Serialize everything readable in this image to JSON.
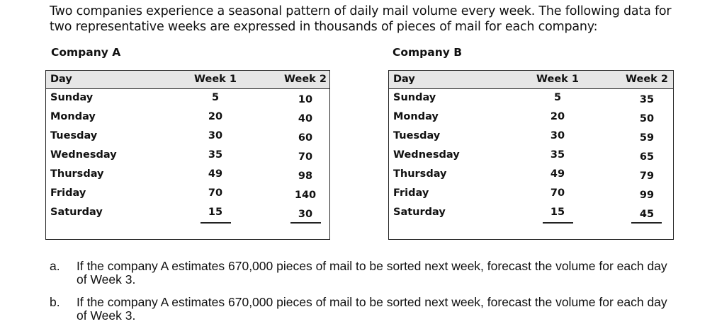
{
  "intro": "Two companies experience a seasonal pattern of daily mail volume every week. The following data for two representative weeks are expressed in thousands of pieces of mail for each company:",
  "tables": [
    {
      "company": "Company A",
      "headers": [
        "Day",
        "Week 1",
        "Week 2"
      ],
      "rows": [
        [
          "Sunday",
          "5",
          "10"
        ],
        [
          "Monday",
          "20",
          "40"
        ],
        [
          "Tuesday",
          "30",
          "60"
        ],
        [
          "Wednesday",
          "35",
          "70"
        ],
        [
          "Thursday",
          "49",
          "98"
        ],
        [
          "Friday",
          "70",
          "140"
        ],
        [
          "Saturday",
          "15",
          "30"
        ]
      ]
    },
    {
      "company": "Company B",
      "headers": [
        "Day",
        "Week 1",
        "Week 2"
      ],
      "rows": [
        [
          "Sunday",
          "5",
          "35"
        ],
        [
          "Monday",
          "20",
          "50"
        ],
        [
          "Tuesday",
          "30",
          "59"
        ],
        [
          "Wednesday",
          "35",
          "65"
        ],
        [
          "Thursday",
          "49",
          "79"
        ],
        [
          "Friday",
          "70",
          "99"
        ],
        [
          "Saturday",
          "15",
          "45"
        ]
      ]
    }
  ],
  "questions": [
    {
      "letter": "a.",
      "text": "If the company A estimates 670,000 pieces of mail to be sorted next week, forecast the volume for each day of Week 3."
    },
    {
      "letter": "b.",
      "text": "If the company A estimates 670,000 pieces of mail to be sorted next week, forecast the volume for each day of Week 3."
    }
  ]
}
